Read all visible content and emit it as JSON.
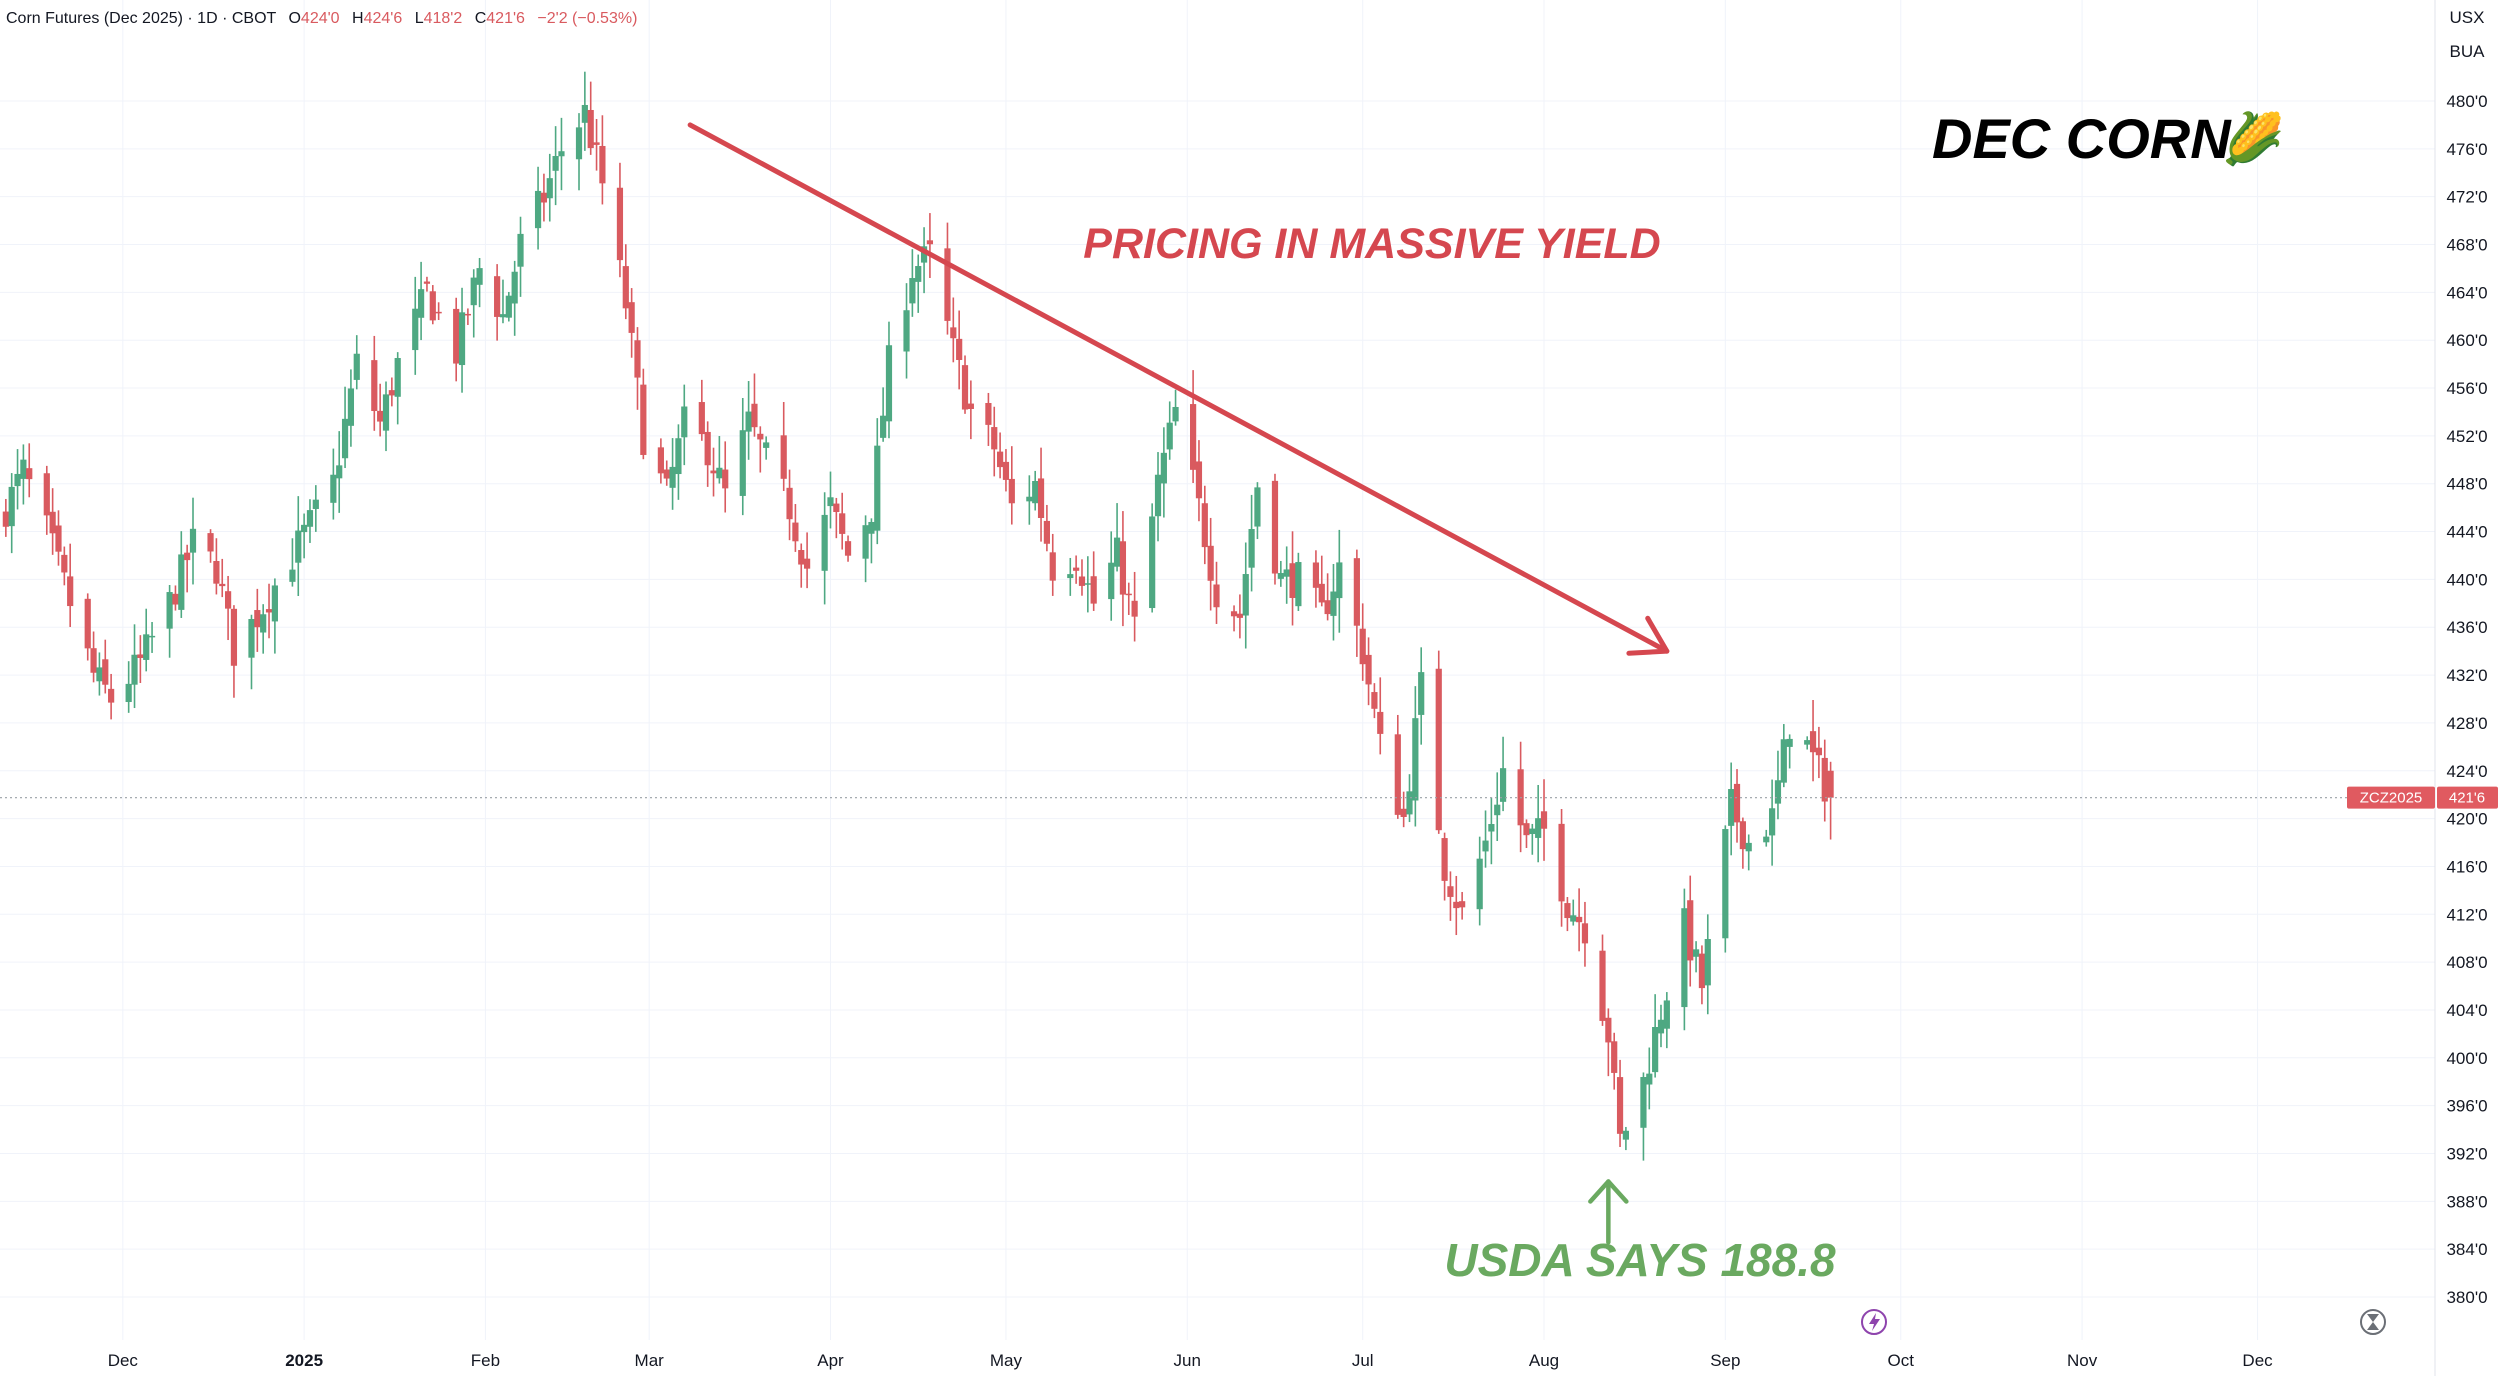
{
  "header": {
    "symbol_desc": "Corn Futures (Dec 2025) · 1D · CBOT",
    "o_label": "O",
    "o_value": "424'0",
    "h_label": "H",
    "h_value": "424'6",
    "l_label": "L",
    "l_value": "418'2",
    "c_label": "C",
    "c_value": "421'6",
    "change": "−2'2 (−0.53%)"
  },
  "axis_units": {
    "currency": "USX",
    "unit": "BUA"
  },
  "price_tag": {
    "symbol": "ZCZ2025",
    "value": "421'6"
  },
  "annotations": {
    "title": "DEC CORN",
    "title_emoji": "🌽",
    "trend_text": "PRICING IN MASSIVE YIELD",
    "usda_text": "USDA SAYS 188.8"
  },
  "icons": [
    "flash-icon",
    "hourglass-icon"
  ],
  "colors": {
    "up": "#26a69a",
    "up_body": "#4ea882",
    "down": "#d95a5f",
    "trend": "#d5474f",
    "usda": "#6aa960"
  },
  "chart_data": {
    "type": "candlestick",
    "title": "Corn Futures (Dec 2025)",
    "y_axis": {
      "range": [
        378,
        483
      ],
      "tick_values": [
        380,
        384,
        388,
        392,
        396,
        400,
        404,
        408,
        412,
        416,
        420,
        424,
        428,
        432,
        436,
        440,
        444,
        448,
        452,
        456,
        460,
        464,
        468,
        472,
        476,
        480
      ],
      "tick_labels": [
        "380'0",
        "384'0",
        "388'0",
        "392'0",
        "396'0",
        "400'0",
        "404'0",
        "408'0",
        "412'0",
        "416'0",
        "420'0",
        "424'0",
        "428'0",
        "432'0",
        "436'0",
        "440'0",
        "444'0",
        "448'0",
        "452'0",
        "456'0",
        "460'0",
        "464'0",
        "468'0",
        "472'0",
        "476'0",
        "480'0"
      ]
    },
    "x_axis": {
      "range": [
        "2024-11-10",
        "2025-12-31"
      ],
      "ticks": [
        {
          "date": "2024-12-01",
          "label": "Dec",
          "bold": false
        },
        {
          "date": "2025-01-01",
          "label": "2025",
          "bold": true
        },
        {
          "date": "2025-02-01",
          "label": "Feb",
          "bold": false
        },
        {
          "date": "2025-03-01",
          "label": "Mar",
          "bold": false
        },
        {
          "date": "2025-04-01",
          "label": "Apr",
          "bold": false
        },
        {
          "date": "2025-05-01",
          "label": "May",
          "bold": false
        },
        {
          "date": "2025-06-01",
          "label": "Jun",
          "bold": false
        },
        {
          "date": "2025-07-01",
          "label": "Jul",
          "bold": false
        },
        {
          "date": "2025-08-01",
          "label": "Aug",
          "bold": false
        },
        {
          "date": "2025-09-01",
          "label": "Sep",
          "bold": false
        },
        {
          "date": "2025-10-01",
          "label": "Oct",
          "bold": false
        },
        {
          "date": "2025-11-01",
          "label": "Nov",
          "bold": false
        },
        {
          "date": "2025-12-01",
          "label": "Dec",
          "bold": false
        }
      ]
    },
    "grid": true,
    "last_price": 421.75,
    "trendline": {
      "from": {
        "date": "2025-03-08",
        "price": 478
      },
      "to": {
        "date": "2025-08-22",
        "price": 434
      }
    },
    "arrow_up": {
      "date": "2025-08-12",
      "from_price": 387.5,
      "to_price": 391.5
    },
    "anchors": [
      {
        "date": "2024-11-11",
        "close": 446
      },
      {
        "date": "2024-11-14",
        "close": 449
      },
      {
        "date": "2024-11-18",
        "close": 444
      },
      {
        "date": "2024-11-22",
        "close": 438
      },
      {
        "date": "2024-11-26",
        "close": 432
      },
      {
        "date": "2024-11-29",
        "close": 430
      },
      {
        "date": "2024-12-04",
        "close": 433
      },
      {
        "date": "2024-12-09",
        "close": 438
      },
      {
        "date": "2024-12-13",
        "close": 443
      },
      {
        "date": "2024-12-17",
        "close": 441
      },
      {
        "date": "2024-12-20",
        "close": 434
      },
      {
        "date": "2024-12-24",
        "close": 437
      },
      {
        "date": "2024-12-30",
        "close": 442
      },
      {
        "date": "2025-01-06",
        "close": 448
      },
      {
        "date": "2025-01-10",
        "close": 458
      },
      {
        "date": "2025-01-14",
        "close": 453
      },
      {
        "date": "2025-01-17",
        "close": 458
      },
      {
        "date": "2025-01-22",
        "close": 464
      },
      {
        "date": "2025-01-27",
        "close": 459
      },
      {
        "date": "2025-01-31",
        "close": 466
      },
      {
        "date": "2025-02-04",
        "close": 462
      },
      {
        "date": "2025-02-07",
        "close": 468
      },
      {
        "date": "2025-02-11",
        "close": 472
      },
      {
        "date": "2025-02-14",
        "close": 476
      },
      {
        "date": "2025-02-18",
        "close": 479
      },
      {
        "date": "2025-02-21",
        "close": 473
      },
      {
        "date": "2025-02-25",
        "close": 463
      },
      {
        "date": "2025-02-28",
        "close": 452
      },
      {
        "date": "2025-03-04",
        "close": 447
      },
      {
        "date": "2025-03-07",
        "close": 453
      },
      {
        "date": "2025-03-11",
        "close": 451
      },
      {
        "date": "2025-03-14",
        "close": 447
      },
      {
        "date": "2025-03-18",
        "close": 453
      },
      {
        "date": "2025-03-21",
        "close": 450
      },
      {
        "date": "2025-03-25",
        "close": 446
      },
      {
        "date": "2025-03-28",
        "close": 441
      },
      {
        "date": "2025-04-01",
        "close": 446
      },
      {
        "date": "2025-04-04",
        "close": 442
      },
      {
        "date": "2025-04-08",
        "close": 446
      },
      {
        "date": "2025-04-11",
        "close": 458
      },
      {
        "date": "2025-04-15",
        "close": 466
      },
      {
        "date": "2025-04-18",
        "close": 467
      },
      {
        "date": "2025-04-22",
        "close": 459
      },
      {
        "date": "2025-04-25",
        "close": 454
      },
      {
        "date": "2025-04-29",
        "close": 451
      },
      {
        "date": "2025-05-02",
        "close": 446
      },
      {
        "date": "2025-05-06",
        "close": 448
      },
      {
        "date": "2025-05-09",
        "close": 441
      },
      {
        "date": "2025-05-13",
        "close": 442
      },
      {
        "date": "2025-05-16",
        "close": 438
      },
      {
        "date": "2025-05-20",
        "close": 442
      },
      {
        "date": "2025-05-23",
        "close": 436
      },
      {
        "date": "2025-05-27",
        "close": 448
      },
      {
        "date": "2025-05-30",
        "close": 454
      },
      {
        "date": "2025-06-03",
        "close": 446
      },
      {
        "date": "2025-06-06",
        "close": 439
      },
      {
        "date": "2025-06-10",
        "close": 437
      },
      {
        "date": "2025-06-13",
        "close": 448
      },
      {
        "date": "2025-06-17",
        "close": 440
      },
      {
        "date": "2025-06-20",
        "close": 440
      },
      {
        "date": "2025-06-24",
        "close": 437
      },
      {
        "date": "2025-06-27",
        "close": 441
      },
      {
        "date": "2025-07-01",
        "close": 434
      },
      {
        "date": "2025-07-04",
        "close": 426
      },
      {
        "date": "2025-07-08",
        "close": 420
      },
      {
        "date": "2025-07-11",
        "close": 431
      },
      {
        "date": "2025-07-15",
        "close": 416
      },
      {
        "date": "2025-07-18",
        "close": 412
      },
      {
        "date": "2025-07-22",
        "close": 418
      },
      {
        "date": "2025-07-25",
        "close": 424
      },
      {
        "date": "2025-07-29",
        "close": 418
      },
      {
        "date": "2025-08-01",
        "close": 419
      },
      {
        "date": "2025-08-05",
        "close": 413
      },
      {
        "date": "2025-08-08",
        "close": 411
      },
      {
        "date": "2025-08-12",
        "close": 402
      },
      {
        "date": "2025-08-14",
        "close": 393
      },
      {
        "date": "2025-08-18",
        "close": 398
      },
      {
        "date": "2025-08-21",
        "close": 404
      },
      {
        "date": "2025-08-25",
        "close": 411
      },
      {
        "date": "2025-08-28",
        "close": 406
      },
      {
        "date": "2025-09-02",
        "close": 421
      },
      {
        "date": "2025-09-05",
        "close": 418
      },
      {
        "date": "2025-09-09",
        "close": 420
      },
      {
        "date": "2025-09-12",
        "close": 428
      },
      {
        "date": "2025-09-15",
        "close": 426
      },
      {
        "date": "2025-09-19",
        "close": 421.75
      }
    ]
  }
}
